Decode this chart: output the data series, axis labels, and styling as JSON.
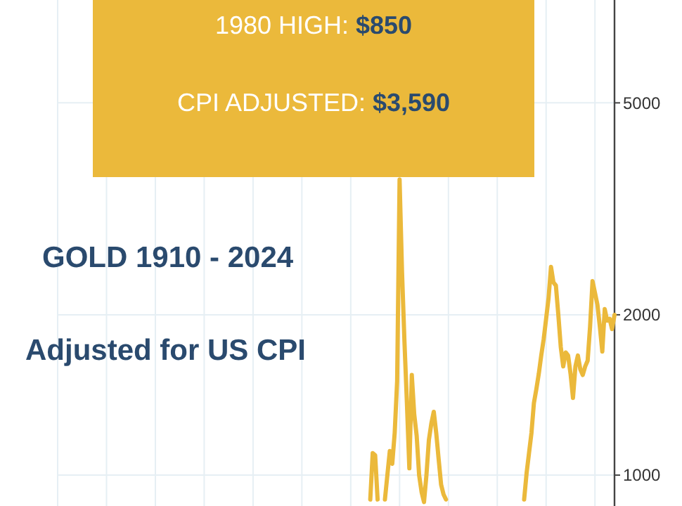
{
  "chart_data": {
    "type": "line",
    "title": "GOLD 1910 - 2024",
    "subtitle": "Adjusted for US CPI",
    "annotations": [
      "1980 HIGH: $850",
      "CPI ADJUSTED: $3,590"
    ],
    "categories": [
      null,
      null,
      null,
      null,
      null,
      null,
      null,
      null,
      null,
      null,
      null,
      null,
      null,
      null,
      null,
      null,
      null,
      null,
      null,
      null,
      null,
      null,
      null,
      null,
      null,
      null,
      null,
      null,
      null,
      null,
      null,
      null,
      null,
      null,
      null,
      null,
      null,
      null,
      null,
      null,
      null,
      null,
      null,
      null,
      null,
      null,
      null,
      null,
      null,
      null,
      null,
      null,
      null,
      null,
      null,
      null,
      null,
      null,
      null,
      null,
      null,
      null,
      null,
      null,
      null,
      null,
      null,
      null,
      null,
      null,
      null,
      null,
      null,
      null,
      null,
      null,
      null,
      null,
      null,
      null,
      null,
      null,
      null,
      null,
      null,
      null,
      null,
      null,
      null,
      null,
      null,
      null,
      null,
      null,
      null,
      null,
      null,
      null,
      null,
      null,
      null,
      null,
      null,
      null,
      null,
      null,
      null,
      null,
      null,
      null,
      null,
      null,
      null,
      null,
      null,
      null,
      null,
      null,
      null,
      null,
      null,
      null,
      null,
      null,
      null,
      null,
      null,
      null,
      null,
      null,
      null,
      null,
      null,
      null,
      null,
      null,
      null,
      null,
      null,
      null,
      null,
      null,
      null,
      null,
      null,
      null,
      null,
      null,
      null,
      null,
      null,
      null,
      null,
      null,
      null,
      null,
      null,
      null,
      null,
      null,
      null,
      null,
      null,
      null,
      null,
      null,
      null,
      null,
      null,
      null,
      null,
      null,
      null,
      null,
      null,
      null,
      null,
      null,
      null,
      null,
      null,
      null,
      null,
      null,
      null,
      null,
      null,
      null,
      null,
      null,
      null,
      null,
      null,
      null,
      null,
      null,
      null,
      null,
      null,
      null,
      null,
      null,
      null,
      null,
      null,
      null,
      null,
      null,
      null,
      null,
      null,
      null,
      null,
      null,
      null,
      null,
      null,
      null,
      null,
      null,
      null,
      null,
      null,
      null,
      null,
      null,
      null,
      null,
      null
    ],
    "series": [
      {
        "color": "#ebb93b",
        "values": [
          null,
          null,
          null,
          null,
          null,
          null,
          null,
          null,
          null,
          null,
          null,
          null,
          null,
          null,
          null,
          null,
          null,
          null,
          null,
          null,
          null,
          null,
          null,
          null,
          null,
          null,
          null,
          null,
          null,
          null,
          null,
          null,
          null,
          null,
          null,
          null,
          null,
          null,
          null,
          null,
          null,
          null,
          null,
          null,
          null,
          null,
          null,
          null,
          null,
          null,
          null,
          null,
          null,
          null,
          null,
          null,
          null,
          null,
          null,
          null,
          null,
          null,
          null,
          null,
          null,
          null,
          null,
          null,
          null,
          null,
          null,
          null,
          null,
          null,
          null,
          null,
          null,
          null,
          null,
          null,
          null,
          null,
          null,
          null,
          null,
          null,
          null,
          null,
          null,
          null,
          null,
          null,
          null,
          null,
          null,
          null,
          null,
          null,
          null,
          null,
          null,
          null,
          null,
          null,
          null,
          null,
          null,
          null,
          null,
          null,
          null,
          null,
          null,
          null,
          null,
          null,
          null,
          null,
          null,
          null,
          null,
          null,
          null,
          null,
          null,
          null,
          null,
          null,
          900,
          1100,
          1090,
          900,
          null,
          null,
          900,
          1000,
          1110,
          1050,
          1200,
          1500,
          3590,
          2410,
          1780,
          1366,
          1030,
          1542,
          1300,
          1185,
          1000,
          930,
          890,
          1000,
          1164,
          1250,
          1315,
          1200,
          1071,
          960,
          920,
          900,
          null,
          null,
          null,
          null,
          null,
          null,
          null,
          null,
          null,
          null,
          null,
          null,
          null,
          null,
          null,
          null,
          null,
          null,
          null,
          null,
          null,
          null,
          null,
          null,
          null,
          null,
          null,
          null,
          null,
          null,
          null,
          900,
          1008,
          1100,
          1200,
          1366,
          1450,
          1550,
          1677,
          1800,
          1966,
          2150,
          2460,
          2300,
          2270,
          2000,
          1740,
          1600,
          1700,
          1677,
          1550,
          1396,
          1600,
          1677,
          1580,
          1542,
          1600,
          1640,
          1900,
          2313,
          2200,
          2090,
          1900,
          1706,
          2050,
          1950,
          1966,
          1880,
          2000
        ]
      }
    ],
    "log": true,
    "ylim": [
      875,
      7800
    ],
    "yticks": [
      1000,
      2000,
      5000
    ],
    "grid": true,
    "tick_labels": "y",
    "line_style": "solid",
    "marker": "none"
  }
}
